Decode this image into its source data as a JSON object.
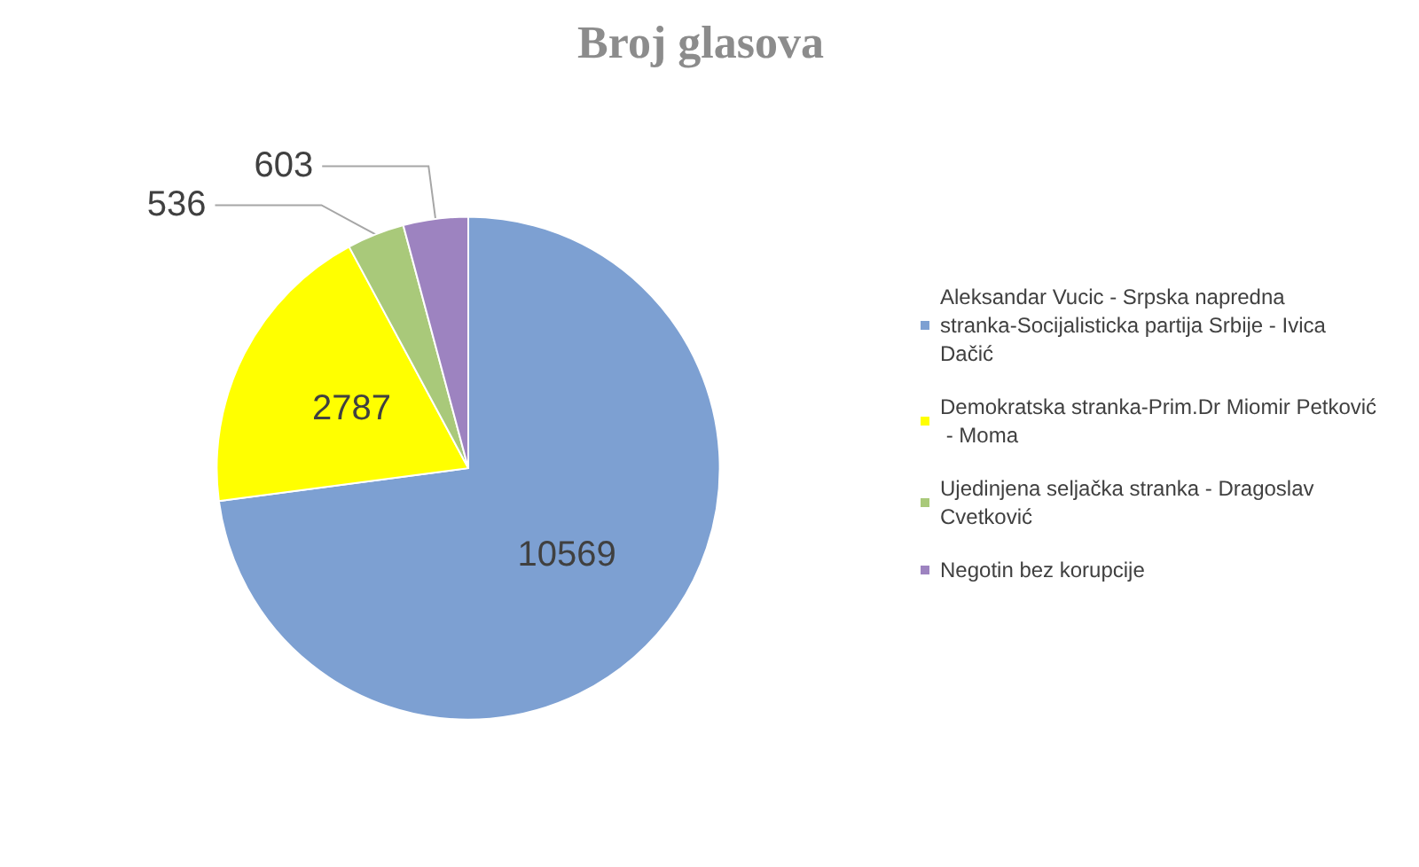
{
  "chart_data": {
    "type": "pie",
    "title": "Broj glasova",
    "categories": [
      "Aleksandar Vucic - Srpska napredna stranka-Socijalisticka partija Srbije - Ivica Dačić",
      "Demokratska stranka-Prim.Dr Miomir Petković - Moma",
      "Ujedinjena seljačka stranka - Dragoslav Cvetković",
      "Negotin bez korupcije"
    ],
    "values": [
      10569,
      2787,
      536,
      603
    ],
    "colors": [
      "#7da0d2",
      "#ffff00",
      "#a9c97a",
      "#9d83c0"
    ],
    "data_labels": true,
    "legend": "right"
  }
}
